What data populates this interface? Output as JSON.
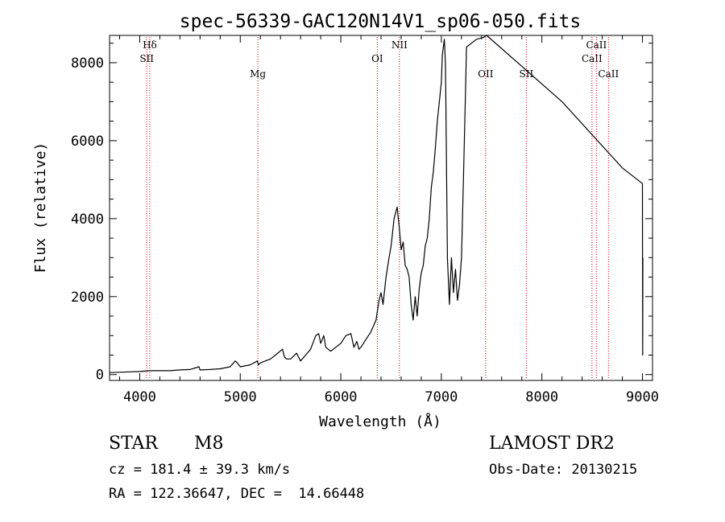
{
  "chart_data": {
    "type": "line",
    "title": "spec-56339-GAC120N14V1_sp06-050.fits",
    "xlabel": "Wavelength (Å)",
    "ylabel": "Flux (relative)",
    "xlim": [
      3700,
      9100
    ],
    "ylim": [
      -150,
      8700
    ],
    "xticks": [
      4000,
      5000,
      6000,
      7000,
      8000,
      9000
    ],
    "yticks": [
      0,
      2000,
      4000,
      6000,
      8000
    ],
    "grid": false,
    "line_color": "#000000",
    "marker_color": "#cc0000",
    "series": [
      {
        "x": [
          3700,
          3800,
          3900,
          4000,
          4100,
          4200,
          4300,
          4400,
          4500,
          4590,
          4600,
          4700,
          4800,
          4900,
          4950,
          4970,
          5000,
          5100,
          5170,
          5180,
          5200,
          5300,
          5350,
          5420,
          5440,
          5460,
          5500,
          5560,
          5600,
          5650,
          5700,
          5750,
          5780,
          5800,
          5830,
          5850,
          5900,
          5950,
          6000,
          6050,
          6100,
          6130,
          6160,
          6180,
          6200,
          6250,
          6300,
          6350,
          6380,
          6400,
          6420,
          6450,
          6480,
          6500,
          6530,
          6560,
          6580,
          6600,
          6620,
          6640,
          6660,
          6680,
          6700,
          6720,
          6740,
          6760,
          6780,
          6800,
          6820,
          6840,
          6860,
          6880,
          6900,
          6920,
          6940,
          6960,
          6980,
          7000,
          7010,
          7030,
          7040,
          7045,
          7060,
          7080,
          7100,
          7120,
          7140,
          7160,
          7180,
          7200,
          7220,
          7240,
          7250,
          7300,
          7350,
          7420,
          7450,
          8200,
          8800,
          9000,
          9002,
          9004
        ],
        "y": [
          50,
          60,
          70,
          80,
          100,
          100,
          100,
          120,
          130,
          200,
          120,
          130,
          150,
          200,
          350,
          300,
          200,
          250,
          350,
          250,
          300,
          400,
          500,
          650,
          450,
          400,
          400,
          550,
          350,
          500,
          650,
          1000,
          1050,
          800,
          1000,
          700,
          600,
          700,
          800,
          1000,
          1050,
          700,
          850,
          650,
          700,
          900,
          1100,
          1400,
          1900,
          2100,
          1800,
          2500,
          3000,
          3300,
          4000,
          4300,
          3800,
          3200,
          3400,
          2800,
          2700,
          2500,
          1800,
          1400,
          2000,
          1500,
          2200,
          2600,
          2800,
          3300,
          3500,
          4000,
          4800,
          5200,
          5800,
          6500,
          7000,
          7500,
          8200,
          8600,
          8000,
          7000,
          3000,
          1800,
          3000,
          2100,
          2700,
          1900,
          2300,
          3000,
          5000,
          7200,
          8400,
          8500,
          8600,
          8650,
          8700,
          7000,
          5300,
          4900,
          500,
          3000
        ]
      }
    ],
    "markers": [
      {
        "x": 4100,
        "label": "Hδ",
        "row": 0
      },
      {
        "x": 4070,
        "label": "SII",
        "row": 1
      },
      {
        "x": 5175,
        "label": "Mg",
        "row": 2
      },
      {
        "x": 6363,
        "label": "OI",
        "row": 1
      },
      {
        "x": 6583,
        "label": "NII",
        "row": 0
      },
      {
        "x": 7440,
        "label": "OII",
        "row": 2
      },
      {
        "x": 7845,
        "label": "SII",
        "row": 2
      },
      {
        "x": 8498,
        "label": "CaII",
        "row": 1
      },
      {
        "x": 8542,
        "label": "CaII",
        "row": 0
      },
      {
        "x": 8662,
        "label": "CaII",
        "row": 2
      }
    ]
  },
  "info": {
    "class": "STAR",
    "subclass": "M8",
    "survey": "LAMOST DR2",
    "cz": "cz = 181.4 ± 39.3 km/s",
    "obs_date": "Obs-Date: 20130215",
    "radec": "RA = 122.36647, DEC =  14.66448"
  }
}
